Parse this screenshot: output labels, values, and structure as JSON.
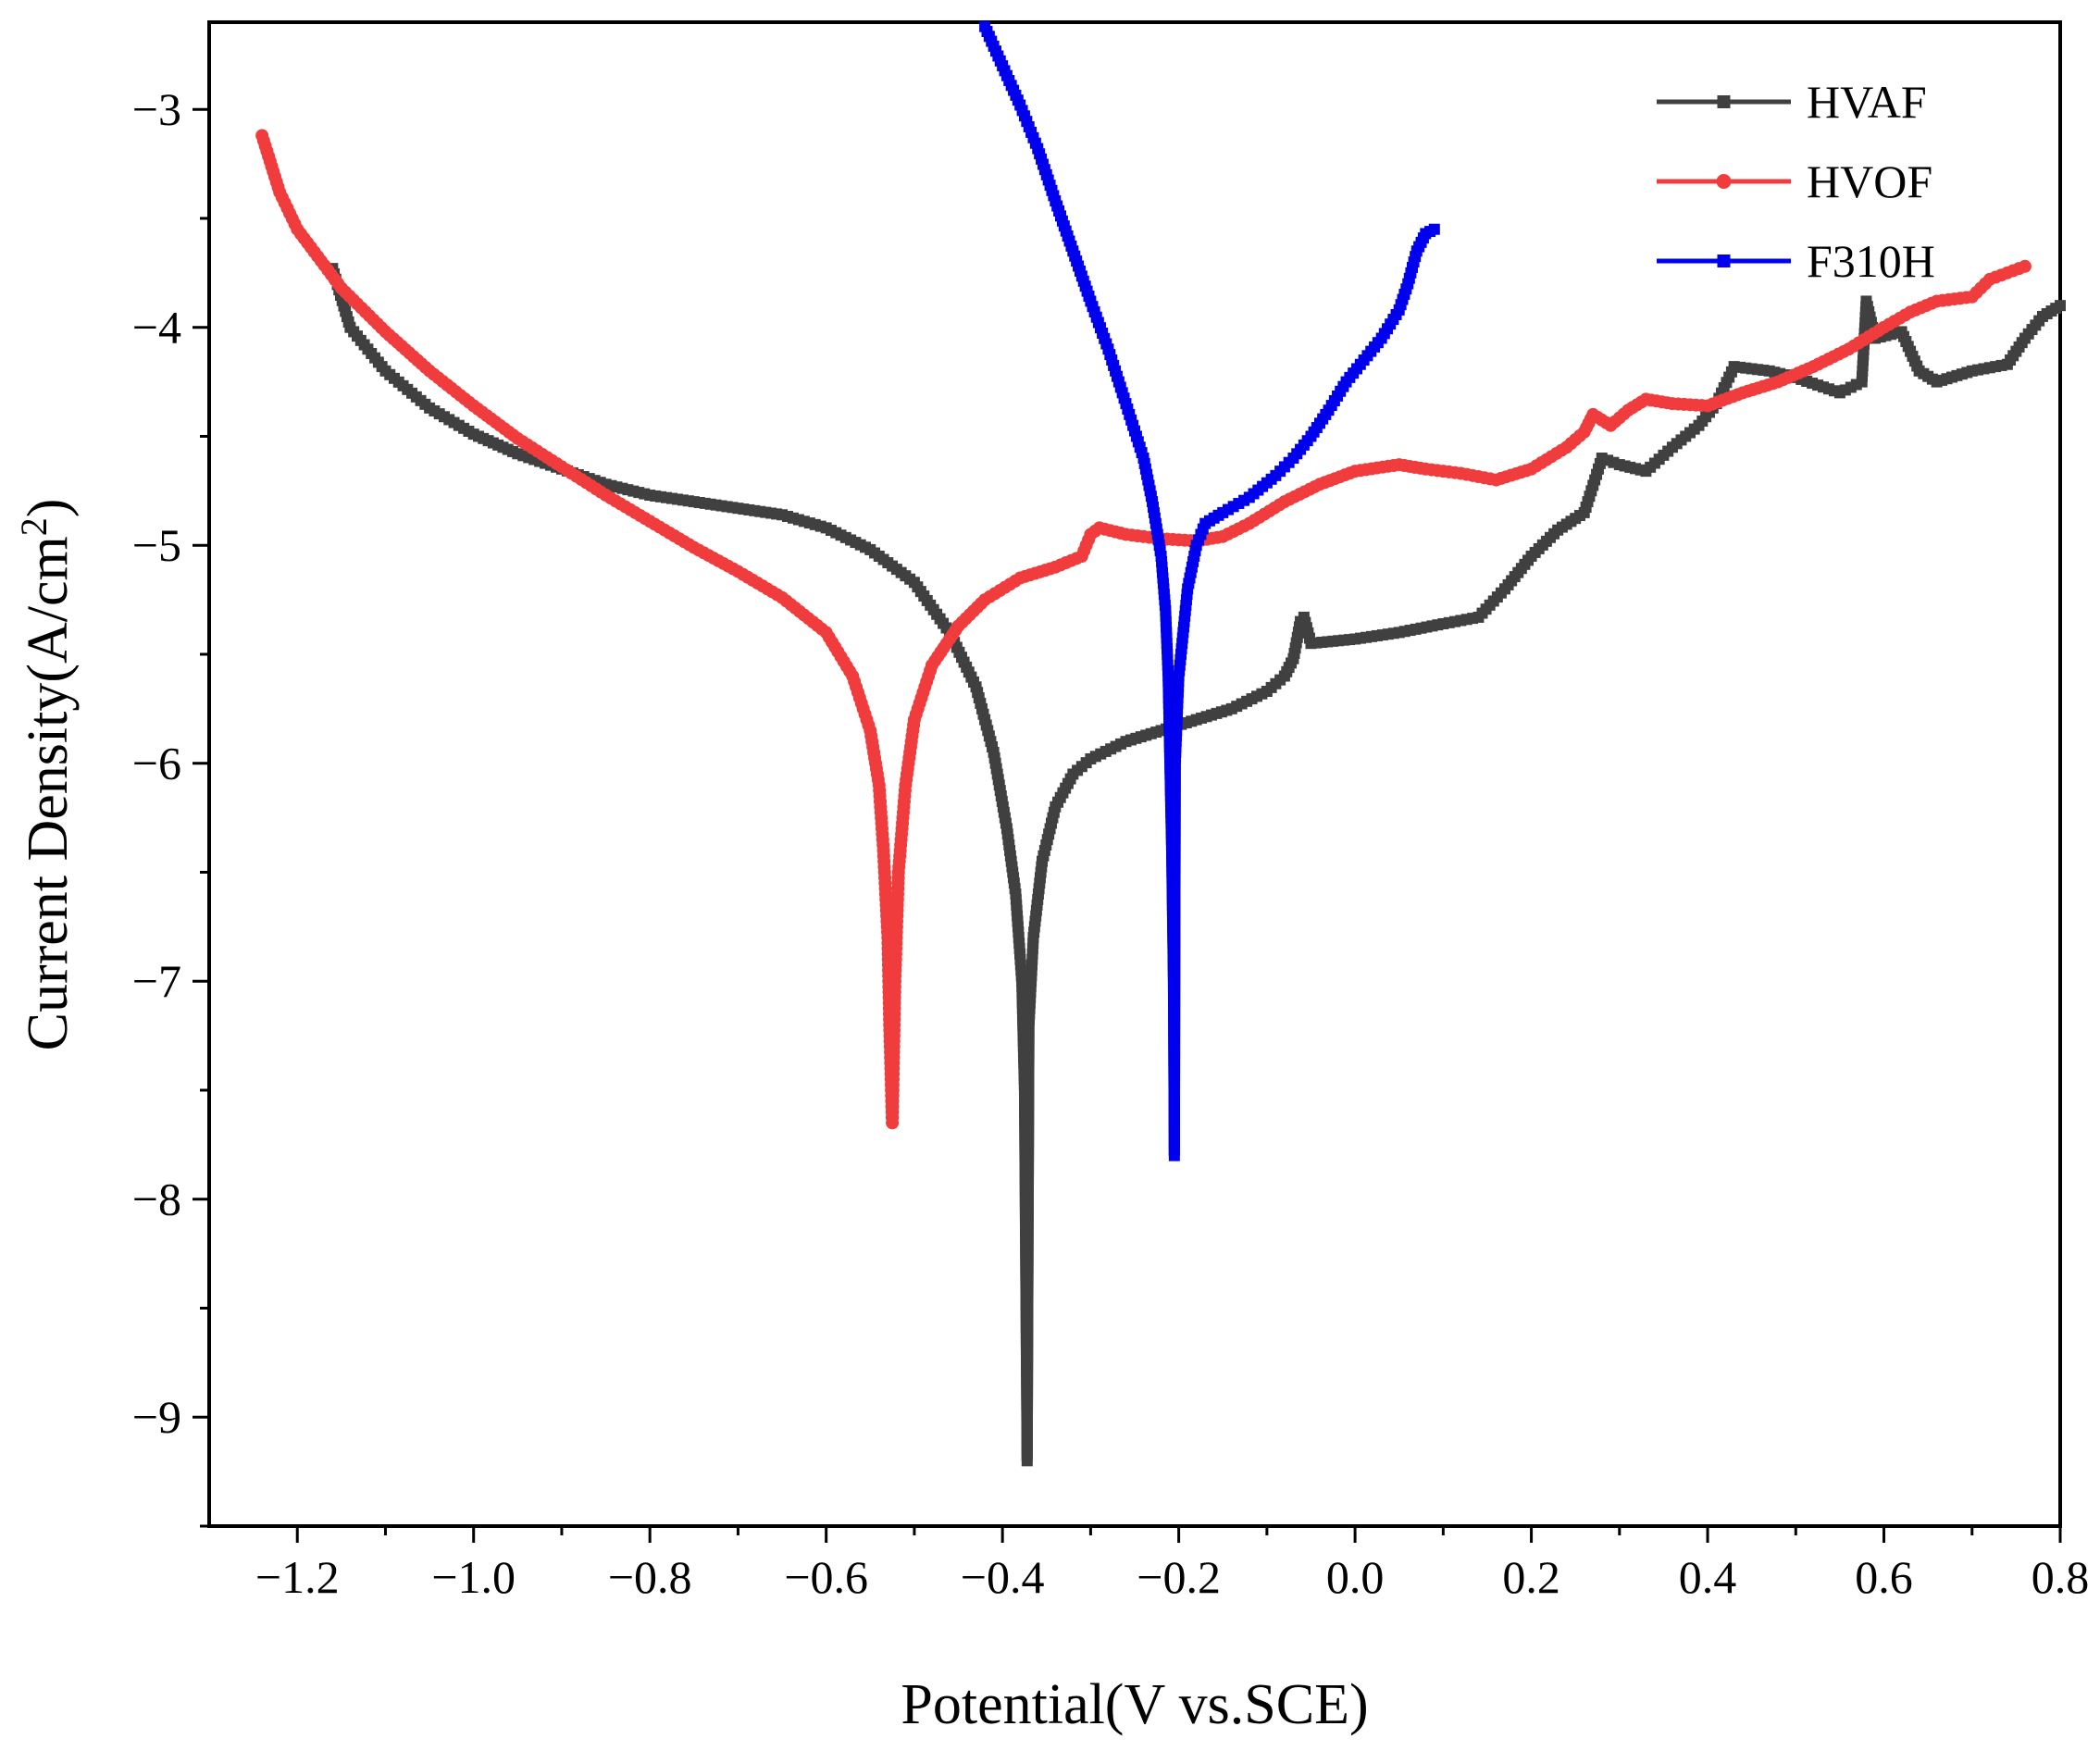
{
  "chart_data": {
    "type": "line",
    "title": "",
    "xlabel": "Potential(V vs.SCE)",
    "ylabel_main": "Current Density(A/cm",
    "ylabel_sup": "2",
    "ylabel_close": ")",
    "xlim": [
      -1.3,
      0.8
    ],
    "ylim": [
      -9.5,
      -2.6
    ],
    "x_ticks": [
      -1.2,
      -1.0,
      -0.8,
      -0.6,
      -0.4,
      -0.2,
      0.0,
      0.2,
      0.4,
      0.6,
      0.8
    ],
    "x_tick_labels": [
      "−1.2",
      "−1.0",
      "−0.8",
      "−0.6",
      "−0.4",
      "−0.2",
      "0.0",
      "0.2",
      "0.4",
      "0.6",
      "0.8"
    ],
    "y_ticks": [
      -9,
      -8,
      -7,
      -6,
      -5,
      -4,
      -3
    ],
    "y_tick_labels": [
      "−9",
      "−8",
      "−7",
      "−6",
      "−5",
      "−4",
      "−3"
    ],
    "legend_position": "top-right",
    "grid": false,
    "series": [
      {
        "name": "HVAF",
        "color": "#404040",
        "marker": "square",
        "points": [
          [
            -1.16,
            -3.73
          ],
          [
            -1.14,
            -4.0
          ],
          [
            -1.1,
            -4.2
          ],
          [
            -1.05,
            -4.37
          ],
          [
            -1.0,
            -4.49
          ],
          [
            -0.95,
            -4.58
          ],
          [
            -0.9,
            -4.65
          ],
          [
            -0.85,
            -4.72
          ],
          [
            -0.8,
            -4.77
          ],
          [
            -0.75,
            -4.8
          ],
          [
            -0.7,
            -4.83
          ],
          [
            -0.65,
            -4.86
          ],
          [
            -0.6,
            -4.92
          ],
          [
            -0.55,
            -5.02
          ],
          [
            -0.5,
            -5.17
          ],
          [
            -0.46,
            -5.4
          ],
          [
            -0.43,
            -5.65
          ],
          [
            -0.41,
            -5.95
          ],
          [
            -0.395,
            -6.3
          ],
          [
            -0.385,
            -6.6
          ],
          [
            -0.378,
            -7.0
          ],
          [
            -0.375,
            -7.5
          ],
          [
            -0.372,
            -9.2
          ],
          [
            -0.37,
            -7.2
          ],
          [
            -0.365,
            -6.8
          ],
          [
            -0.355,
            -6.45
          ],
          [
            -0.34,
            -6.2
          ],
          [
            -0.32,
            -6.05
          ],
          [
            -0.3,
            -5.98
          ],
          [
            -0.26,
            -5.9
          ],
          [
            -0.22,
            -5.85
          ],
          [
            -0.18,
            -5.8
          ],
          [
            -0.14,
            -5.75
          ],
          [
            -0.1,
            -5.67
          ],
          [
            -0.08,
            -5.6
          ],
          [
            -0.07,
            -5.52
          ],
          [
            -0.062,
            -5.35
          ],
          [
            -0.058,
            -5.33
          ],
          [
            -0.05,
            -5.45
          ],
          [
            0.0,
            -5.43
          ],
          [
            0.05,
            -5.4
          ],
          [
            0.1,
            -5.36
          ],
          [
            0.14,
            -5.33
          ],
          [
            0.17,
            -5.2
          ],
          [
            0.2,
            -5.05
          ],
          [
            0.23,
            -4.93
          ],
          [
            0.26,
            -4.85
          ],
          [
            0.28,
            -4.6
          ],
          [
            0.3,
            -4.63
          ],
          [
            0.33,
            -4.66
          ],
          [
            0.36,
            -4.55
          ],
          [
            0.39,
            -4.45
          ],
          [
            0.41,
            -4.35
          ],
          [
            0.43,
            -4.18
          ],
          [
            0.47,
            -4.2
          ],
          [
            0.5,
            -4.23
          ],
          [
            0.55,
            -4.3
          ],
          [
            0.575,
            -4.25
          ],
          [
            0.58,
            -3.88
          ],
          [
            0.59,
            -4.05
          ],
          [
            0.62,
            -4.02
          ],
          [
            0.64,
            -4.2
          ],
          [
            0.66,
            -4.25
          ],
          [
            0.7,
            -4.2
          ],
          [
            0.74,
            -4.17
          ],
          [
            0.76,
            -4.05
          ],
          [
            0.78,
            -3.95
          ],
          [
            0.8,
            -3.9
          ]
        ]
      },
      {
        "name": "HVOF",
        "color": "#f03c3c",
        "marker": "circle",
        "points": [
          [
            -1.24,
            -3.12
          ],
          [
            -1.22,
            -3.38
          ],
          [
            -1.2,
            -3.55
          ],
          [
            -1.15,
            -3.82
          ],
          [
            -1.1,
            -4.02
          ],
          [
            -1.05,
            -4.2
          ],
          [
            -1.0,
            -4.36
          ],
          [
            -0.95,
            -4.51
          ],
          [
            -0.9,
            -4.64
          ],
          [
            -0.85,
            -4.77
          ],
          [
            -0.8,
            -4.89
          ],
          [
            -0.75,
            -5.01
          ],
          [
            -0.7,
            -5.12
          ],
          [
            -0.65,
            -5.24
          ],
          [
            -0.6,
            -5.4
          ],
          [
            -0.57,
            -5.6
          ],
          [
            -0.55,
            -5.85
          ],
          [
            -0.54,
            -6.1
          ],
          [
            -0.535,
            -6.4
          ],
          [
            -0.53,
            -6.8
          ],
          [
            -0.528,
            -7.2
          ],
          [
            -0.525,
            -7.65
          ],
          [
            -0.522,
            -7.0
          ],
          [
            -0.518,
            -6.5
          ],
          [
            -0.51,
            -6.1
          ],
          [
            -0.5,
            -5.8
          ],
          [
            -0.48,
            -5.55
          ],
          [
            -0.45,
            -5.37
          ],
          [
            -0.42,
            -5.25
          ],
          [
            -0.38,
            -5.15
          ],
          [
            -0.34,
            -5.1
          ],
          [
            -0.31,
            -5.05
          ],
          [
            -0.3,
            -4.95
          ],
          [
            -0.29,
            -4.92
          ],
          [
            -0.26,
            -4.95
          ],
          [
            -0.22,
            -4.97
          ],
          [
            -0.18,
            -4.98
          ],
          [
            -0.15,
            -4.96
          ],
          [
            -0.12,
            -4.9
          ],
          [
            -0.08,
            -4.8
          ],
          [
            -0.04,
            -4.72
          ],
          [
            0.0,
            -4.66
          ],
          [
            0.05,
            -4.63
          ],
          [
            0.08,
            -4.65
          ],
          [
            0.12,
            -4.67
          ],
          [
            0.16,
            -4.7
          ],
          [
            0.2,
            -4.65
          ],
          [
            0.24,
            -4.55
          ],
          [
            0.26,
            -4.48
          ],
          [
            0.27,
            -4.4
          ],
          [
            0.29,
            -4.45
          ],
          [
            0.31,
            -4.38
          ],
          [
            0.33,
            -4.33
          ],
          [
            0.36,
            -4.35
          ],
          [
            0.4,
            -4.36
          ],
          [
            0.44,
            -4.3
          ],
          [
            0.48,
            -4.25
          ],
          [
            0.52,
            -4.18
          ],
          [
            0.56,
            -4.1
          ],
          [
            0.6,
            -4.0
          ],
          [
            0.63,
            -3.93
          ],
          [
            0.66,
            -3.88
          ],
          [
            0.7,
            -3.86
          ],
          [
            0.72,
            -3.78
          ],
          [
            0.74,
            -3.75
          ],
          [
            0.76,
            -3.72
          ]
        ]
      },
      {
        "name": "F310H",
        "color": "#0000ee",
        "marker": "square",
        "points": [
          [
            -0.42,
            -2.62
          ],
          [
            -0.4,
            -2.8
          ],
          [
            -0.38,
            -2.98
          ],
          [
            -0.36,
            -3.18
          ],
          [
            -0.34,
            -3.42
          ],
          [
            -0.32,
            -3.65
          ],
          [
            -0.3,
            -3.88
          ],
          [
            -0.28,
            -4.1
          ],
          [
            -0.26,
            -4.35
          ],
          [
            -0.24,
            -4.6
          ],
          [
            -0.23,
            -4.8
          ],
          [
            -0.22,
            -5.05
          ],
          [
            -0.215,
            -5.3
          ],
          [
            -0.212,
            -5.6
          ],
          [
            -0.21,
            -6.0
          ],
          [
            -0.208,
            -6.4
          ],
          [
            -0.206,
            -7.0
          ],
          [
            -0.205,
            -7.8
          ],
          [
            -0.204,
            -6.0
          ],
          [
            -0.2,
            -5.6
          ],
          [
            -0.195,
            -5.4
          ],
          [
            -0.19,
            -5.2
          ],
          [
            -0.18,
            -5.0
          ],
          [
            -0.17,
            -4.9
          ],
          [
            -0.15,
            -4.85
          ],
          [
            -0.12,
            -4.78
          ],
          [
            -0.09,
            -4.68
          ],
          [
            -0.07,
            -4.6
          ],
          [
            -0.05,
            -4.5
          ],
          [
            -0.03,
            -4.38
          ],
          [
            -0.01,
            -4.25
          ],
          [
            0.01,
            -4.15
          ],
          [
            0.03,
            -4.05
          ],
          [
            0.05,
            -3.92
          ],
          [
            0.06,
            -3.8
          ],
          [
            0.07,
            -3.65
          ],
          [
            0.08,
            -3.57
          ],
          [
            0.09,
            -3.55
          ]
        ]
      }
    ]
  }
}
